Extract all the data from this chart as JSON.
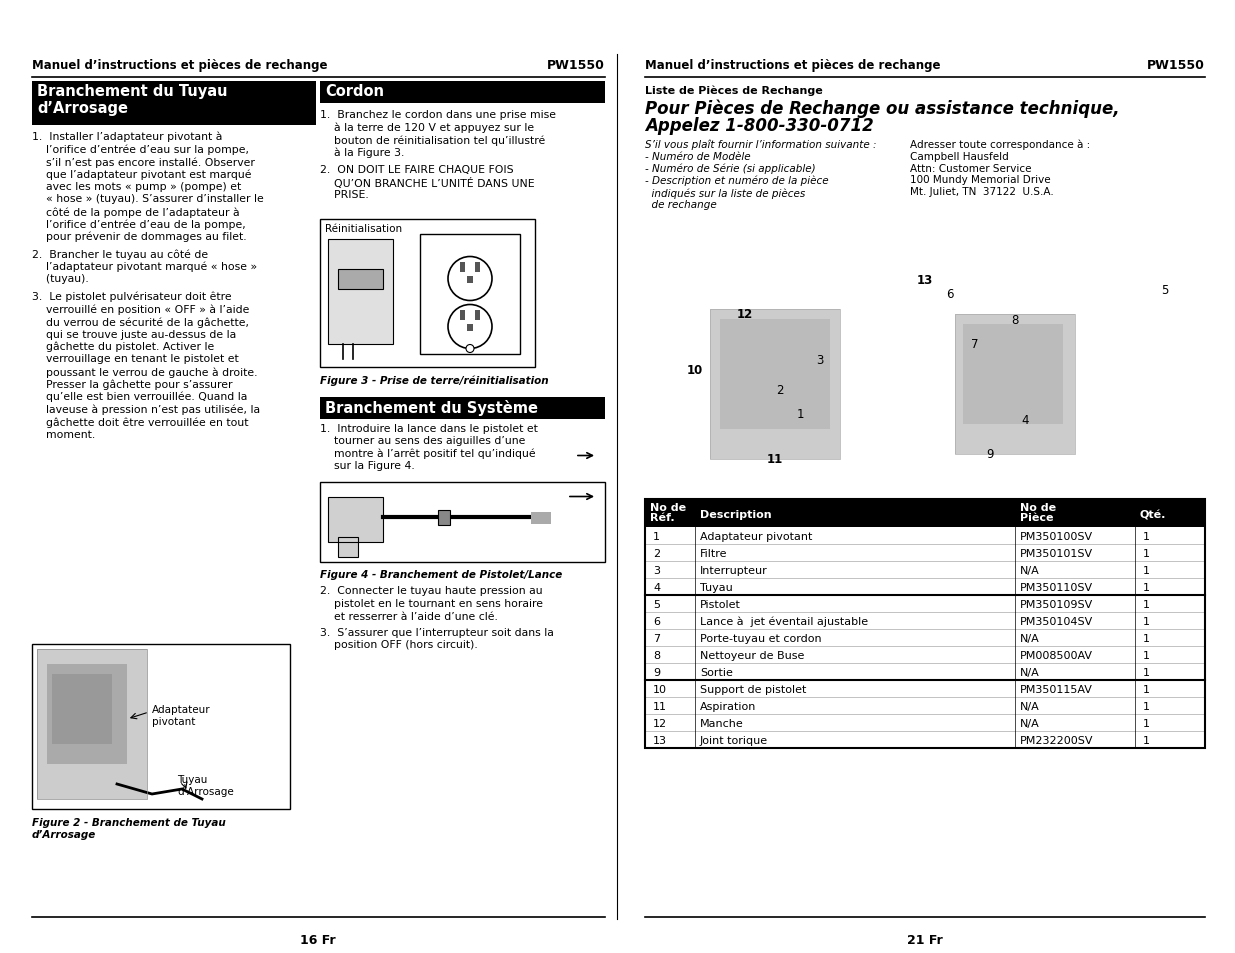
{
  "bg_color": "#ffffff",
  "left_header": "Manuel d’instructions et pièces de rechange",
  "pw_left": "PW1550",
  "right_header": "Manuel d’instructions et pièces de rechange",
  "pw_right": "PW1550",
  "col1_title": "Branchement du Tuyau\nd’Arrosage",
  "col2_title": "Cordon",
  "col3_title": "Branchement du Système",
  "col1_items": [
    "1.  Installer l’adaptateur pivotant à\n    l’orifice d’entrée d’eau sur la pompe,\n    s’il n’est pas encore installé. Observer\n    que l’adaptateur pivotant est marqué\n    avec les mots « pump » (pompe) et\n    « hose » (tuyau). S’assurer d’installer le\n    côté de la pompe de l’adaptateur à\n    l’orifice d’entrée d’eau de la pompe,\n    pour prévenir de dommages au filet.",
    "2.  Brancher le tuyau au côté de\n    l’adaptateur pivotant marqué « hose »\n    (tuyau).",
    "3.  Le pistolet pulvérisateur doit être\n    verrouillé en position « OFF » à l’aide\n    du verrou de sécurité de la gâchette,\n    qui se trouve juste au-dessus de la\n    gâchette du pistolet. Activer le\n    verrouillage en tenant le pistolet et\n    poussant le verrou de gauche à droite.\n    Presser la gâchette pour s’assurer\n    qu’elle est bien verrouillée. Quand la\n    laveuse à pression n’est pas utilisée, la\n    gâchette doit être verrouillée en tout\n    moment."
  ],
  "col2_items": [
    "1.  Branchez le cordon dans une prise mise\n    à la terre de 120 V et appuyez sur le\n    bouton de réinitialisation tel qu’illustré\n    à la Figure 3.",
    "2.  ON DOIT LE FAIRE CHAQUE FOIS\n    QU’ON BRANCHE L’UNITÉ DANS UNE\n    PRISE."
  ],
  "col3_items": [
    "1.  Introduire la lance dans le pistolet et\n    tourner au sens des aiguilles d’une\n    montre à l’arrêt positif tel qu’indiqué\n    sur la Figure 4.",
    "2.  Connecter le tuyau haute pression au\n    pistolet en le tournant en sens horaire\n    et resserrer à l’aide d’une clé.",
    "3.  S’assurer que l’interrupteur soit dans la\n    position OFF (hors circuit)."
  ],
  "fig2_caption": "Figure 2 - Branchement de Tuyau\nd’Arrosage",
  "fig2_label1": "Adaptateur\npivotant",
  "fig2_label2": "Tuyau\nd’Arrosage",
  "fig3_caption": "Figure 3 - Prise de terre/réinitialisation",
  "fig3_label": "Réinitialisation",
  "fig4_caption": "Figure 4 - Branchement de Pistolet/Lance",
  "right_subtitle": "Liste de Pièces de Rechange",
  "right_title_line1": "Pour Pièces de Rechange ou assistance technique,",
  "right_title_line2": "Appelez 1-800-330-0712",
  "left_info": "S’il vous plaît fournir l’information suivante :\n- Numéro de Modèle\n- Numéro de Série (si applicable)\n- Description et numéro de la pièce\n  indiqués sur la liste de pièces\n  de rechange",
  "right_info": "Adresser toute correspondance à :\nCampbell Hausfeld\nAttn: Customer Service\n100 Mundy Memorial Drive\nMt. Juliet, TN  37122  U.S.A.",
  "table_rows": [
    [
      "1",
      "Adaptateur pivotant",
      "PM350100SV",
      "1"
    ],
    [
      "2",
      "Filtre",
      "PM350101SV",
      "1"
    ],
    [
      "3",
      "Interrupteur",
      "N/A",
      "1"
    ],
    [
      "4",
      "Tuyau",
      "PM350110SV",
      "1"
    ],
    [
      "5",
      "Pistolet",
      "PM350109SV",
      "1"
    ],
    [
      "6",
      "Lance à  jet éventail ajustable",
      "PM350104SV",
      "1"
    ],
    [
      "7",
      "Porte-tuyau et cordon",
      "N/A",
      "1"
    ],
    [
      "8",
      "Nettoyeur de Buse",
      "PM008500AV",
      "1"
    ],
    [
      "9",
      "Sortie",
      "N/A",
      "1"
    ],
    [
      "10",
      "Support de pistolet",
      "PM350115AV",
      "1"
    ],
    [
      "11",
      "Aspiration",
      "N/A",
      "1"
    ],
    [
      "12",
      "Manche",
      "N/A",
      "1"
    ],
    [
      "13",
      "Joint torique",
      "PM232200SV",
      "1"
    ]
  ],
  "page_left": "16 Fr",
  "page_right": "21 Fr"
}
